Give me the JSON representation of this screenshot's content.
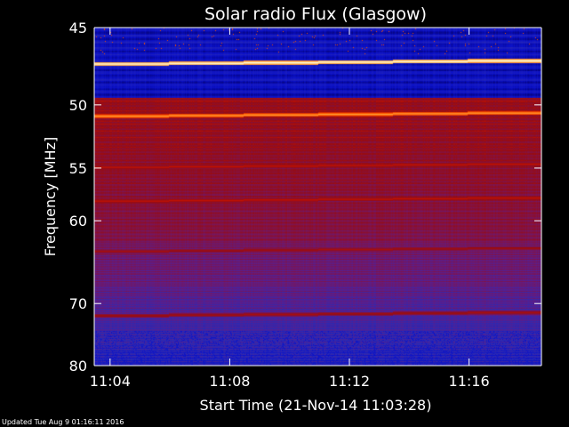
{
  "chart_data": {
    "type": "heatmap",
    "title": "Solar radio Flux (Glasgow)",
    "xlabel": "Start Time (21-Nov-14 11:03:28)",
    "ylabel": "Frequency [MHz]",
    "x_range": [
      "11:03:28",
      "11:18:25"
    ],
    "x_ticks": [
      "11:04",
      "11:08",
      "11:12",
      "11:16"
    ],
    "x_tick_minutes_after_start": [
      0.53,
      4.53,
      8.53,
      12.53
    ],
    "x_span_minutes": 14.95,
    "y_range": [
      45,
      80
    ],
    "y_reversed": true,
    "y_ticks": [
      45,
      50,
      55,
      60,
      70,
      80
    ],
    "y_scale": "reciprocal",
    "colormap": [
      "#050063",
      "#0a10c8",
      "#2a2ab4",
      "#5a1e8c",
      "#7d1450",
      "#960c14",
      "#c81400",
      "#ff6000",
      "#ffb450",
      "#ffffe6"
    ],
    "bright_lines": [
      {
        "frequency_mhz": 47.2,
        "level": "saturated"
      },
      {
        "frequency_mhz": 50.8,
        "level": "high"
      },
      {
        "frequency_mhz": 58.0,
        "level": "medium"
      },
      {
        "frequency_mhz": 54.9,
        "level": "medium"
      },
      {
        "frequency_mhz": 63.3,
        "level": "low"
      },
      {
        "frequency_mhz": 71.7,
        "level": "low"
      }
    ],
    "band_structure": [
      {
        "from_mhz": 45,
        "to_mhz": 49.5,
        "description": "dark blue band"
      },
      {
        "from_mhz": 49.5,
        "to_mhz": 62,
        "description": "red emission"
      },
      {
        "from_mhz": 62,
        "to_mhz": 80,
        "description": "purple to blue"
      }
    ]
  },
  "footer": "Updated Tue Aug  9 01:16:11 2016"
}
